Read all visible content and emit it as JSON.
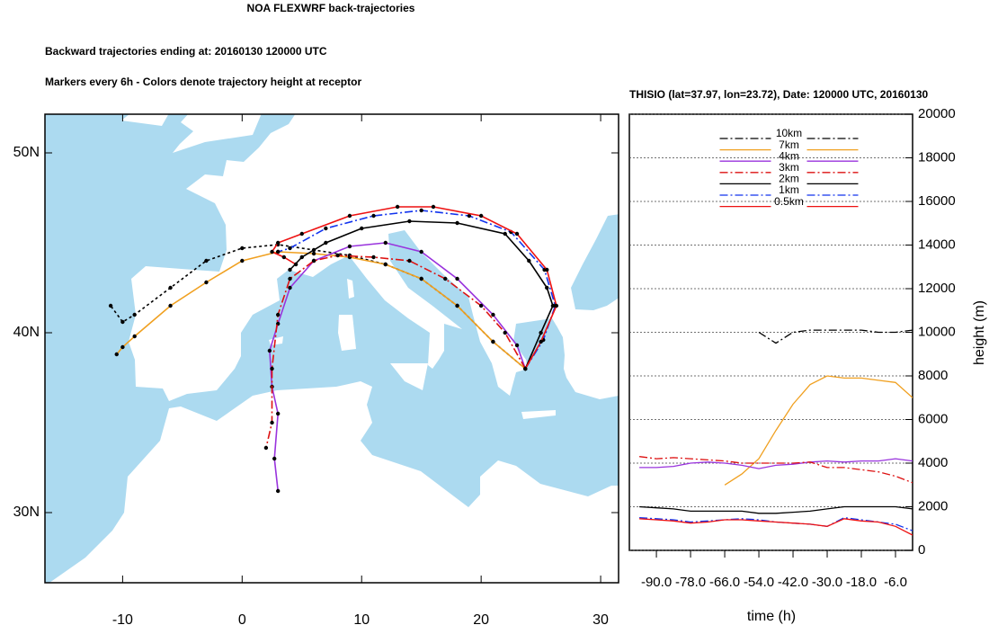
{
  "chart_data": [
    {
      "type": "trajectory_map",
      "title": "NOA FLEXWRF back-trajectories",
      "subtitle": "Backward trajectories ending at: 20160130  120000 UTC",
      "annotation": "Markers every 6h - Colors denote trajectory height at receptor",
      "xlim": [
        -16.5,
        31.5
      ],
      "ylim": [
        26.1,
        52.15
      ],
      "xticks": [
        -10,
        0,
        10,
        20,
        30
      ],
      "yticks": [
        {
          "value": 30,
          "label": "30N"
        },
        {
          "value": 40,
          "label": "40N"
        },
        {
          "value": 50,
          "label": "50N"
        }
      ],
      "series": [
        {
          "color": "#000000",
          "style": "dotted",
          "x": [
            23.7,
            21,
            18,
            15,
            12,
            9,
            6,
            3,
            0,
            -3,
            -6,
            -9,
            -10,
            -11
          ],
          "values": [
            38,
            39.5,
            41.5,
            43,
            43.8,
            44.3,
            44.6,
            44.9,
            44.7,
            44,
            42.5,
            41,
            40.6,
            41.5
          ]
        },
        {
          "color": "#f0a020",
          "style": "solid",
          "x": [
            23.7,
            21,
            18,
            15,
            12,
            9,
            6,
            3,
            0,
            -3,
            -6,
            -9,
            -10,
            -10.5
          ],
          "values": [
            38,
            39.5,
            41.5,
            43,
            43.8,
            44.2,
            44.4,
            44.5,
            44,
            42.8,
            41.5,
            39.8,
            39.2,
            38.8
          ]
        },
        {
          "color": "#9933dd",
          "style": "solid",
          "x": [
            23.7,
            23,
            21,
            18,
            15,
            12,
            9,
            6,
            4,
            3,
            2.3,
            2.5,
            3,
            2.7,
            3
          ],
          "values": [
            38,
            39.3,
            41,
            43,
            44.5,
            45,
            44.8,
            44,
            42.5,
            40.5,
            39,
            37,
            35.5,
            33,
            31.2
          ]
        },
        {
          "color": "#dd1111",
          "style": "dashdot",
          "x": [
            23.7,
            22,
            20,
            17,
            14,
            11,
            8,
            6,
            4,
            3,
            2.5,
            2.5,
            2
          ],
          "values": [
            38,
            40,
            41.5,
            43,
            44,
            44.2,
            44.3,
            44,
            43,
            41,
            38,
            35,
            33.6
          ]
        },
        {
          "color": "#000000",
          "style": "solid",
          "x": [
            23.7,
            25,
            26,
            25.5,
            24,
            22,
            18,
            14,
            10,
            7,
            5,
            4
          ],
          "values": [
            38,
            40,
            41.5,
            42.5,
            44,
            45.5,
            46.1,
            46.2,
            45.8,
            45,
            44.2,
            43.5
          ]
        },
        {
          "color": "#1133ee",
          "style": "dashdot",
          "x": [
            23.7,
            25.2,
            26.2,
            25.3,
            22.5,
            19,
            15,
            11,
            7,
            4,
            3
          ],
          "values": [
            38,
            39.6,
            41.5,
            43.5,
            45.6,
            46.5,
            46.8,
            46.5,
            45.8,
            44.7,
            44.5
          ]
        },
        {
          "color": "#ee1111",
          "style": "solid",
          "x": [
            23.7,
            25,
            26.3,
            25.5,
            23,
            20,
            16,
            13,
            9,
            5,
            3,
            2.5,
            3.5,
            4.5
          ],
          "values": [
            38,
            39.5,
            41.5,
            43.5,
            45.5,
            46.5,
            47,
            47,
            46.5,
            45.5,
            45,
            44.5,
            44.2,
            43.8
          ]
        }
      ]
    },
    {
      "type": "line",
      "title": "THISIO (lat=37.97,  lon=23.72), Date: 120000 UTC, 20160130",
      "xlabel": "time (h)",
      "ylabel": "height (m)",
      "xlim": [
        -99.5,
        0
      ],
      "ylim": [
        0,
        20000
      ],
      "xticks": [
        {
          "value": -90,
          "label": "-90.0"
        },
        {
          "value": -78,
          "label": "-78.0"
        },
        {
          "value": -66,
          "label": "-66.0"
        },
        {
          "value": -54,
          "label": "-54.0"
        },
        {
          "value": -42,
          "label": "-42.0"
        },
        {
          "value": -30,
          "label": "-30.0"
        },
        {
          "value": -18,
          "label": "-18.0"
        },
        {
          "value": -6,
          "label": "-6.0"
        }
      ],
      "yticks": [
        0,
        2000,
        4000,
        6000,
        8000,
        10000,
        12000,
        14000,
        16000,
        18000,
        20000
      ],
      "grid": true,
      "legend": "top",
      "x": [
        -96,
        -90,
        -84,
        -78,
        -72,
        -66,
        -60,
        -54,
        -48,
        -42,
        -36,
        -30,
        -24,
        -18,
        -12,
        -6,
        0
      ],
      "series": [
        {
          "name": "10km",
          "color": "#000000",
          "style": "dashdot",
          "values": [
            null,
            null,
            null,
            null,
            null,
            null,
            null,
            10000,
            9500,
            10000,
            10100,
            10100,
            10100,
            10100,
            10000,
            10000,
            10100
          ]
        },
        {
          "name": "7km",
          "color": "#f0a020",
          "style": "solid",
          "values": [
            null,
            null,
            null,
            null,
            null,
            3000,
            3500,
            4200,
            5500,
            6700,
            7600,
            8000,
            7900,
            7900,
            7800,
            7700,
            7000
          ]
        },
        {
          "name": "4km",
          "color": "#9933dd",
          "style": "solid",
          "values": [
            3800,
            3800,
            3850,
            4000,
            4050,
            4000,
            3900,
            3750,
            3900,
            3950,
            4050,
            4100,
            4050,
            4100,
            4100,
            4200,
            4100
          ]
        },
        {
          "name": "3km",
          "color": "#dd1111",
          "style": "dashdot",
          "values": [
            4300,
            4200,
            4250,
            4200,
            4150,
            4100,
            4000,
            4000,
            4000,
            4000,
            4050,
            3800,
            3800,
            3700,
            3600,
            3400,
            3100
          ]
        },
        {
          "name": "2km",
          "color": "#000000",
          "style": "solid",
          "values": [
            2000,
            1950,
            1900,
            1800,
            1800,
            1800,
            1800,
            1700,
            1700,
            1750,
            1800,
            1900,
            2000,
            2000,
            2000,
            2000,
            1900
          ]
        },
        {
          "name": "1km",
          "color": "#1133ee",
          "style": "dashdot",
          "values": [
            1500,
            1450,
            1400,
            1300,
            1350,
            1400,
            1450,
            1400,
            1300,
            1250,
            1200,
            1100,
            1500,
            1400,
            1300,
            1200,
            900
          ]
        },
        {
          "name": "0.5km",
          "color": "#ee1111",
          "style": "solid",
          "values": [
            1450,
            1400,
            1350,
            1250,
            1300,
            1400,
            1400,
            1350,
            1300,
            1250,
            1200,
            1100,
            1450,
            1350,
            1300,
            1100,
            700
          ]
        }
      ]
    }
  ]
}
